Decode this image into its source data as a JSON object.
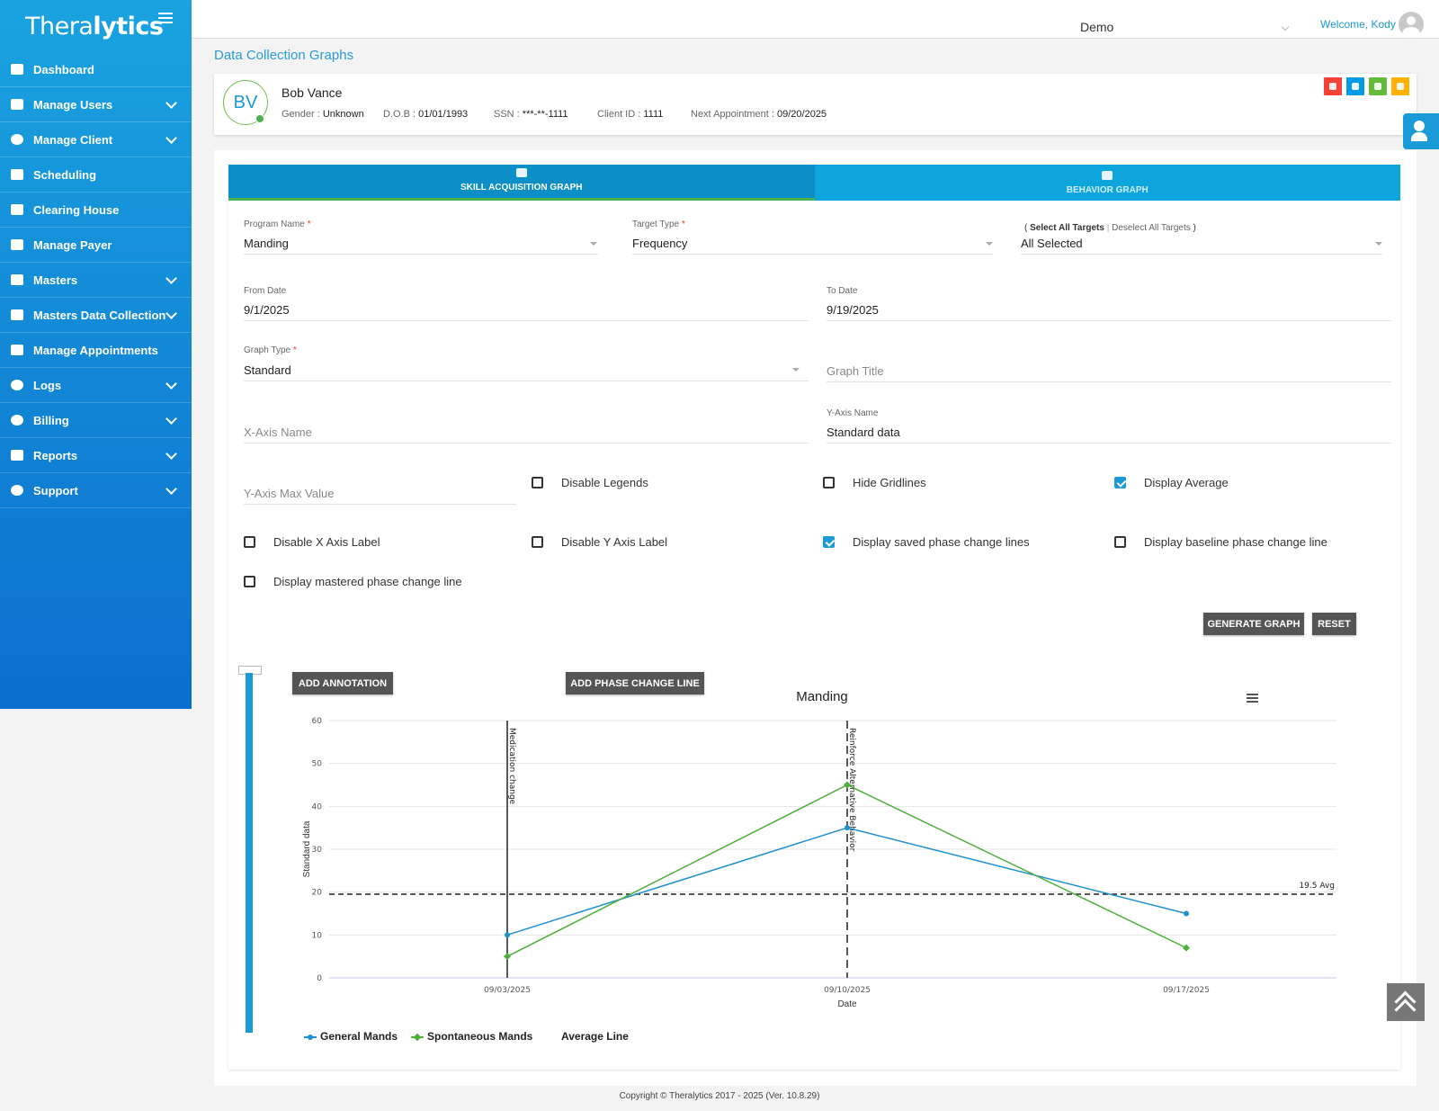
{
  "app": {
    "logo_text_a": "Thera",
    "logo_text_b": "lytics"
  },
  "sidebar": {
    "items": [
      {
        "label": "Dashboard",
        "icon": "dashboard-icon",
        "expandable": false
      },
      {
        "label": "Manage Users",
        "icon": "users-icon",
        "expandable": true
      },
      {
        "label": "Manage Client",
        "icon": "user-icon",
        "expandable": true
      },
      {
        "label": "Scheduling",
        "icon": "calendar-icon",
        "expandable": false
      },
      {
        "label": "Clearing House",
        "icon": "id-card-icon",
        "expandable": false
      },
      {
        "label": "Manage Payer",
        "icon": "credit-card-icon",
        "expandable": false
      },
      {
        "label": "Masters",
        "icon": "database-icon",
        "expandable": true
      },
      {
        "label": "Masters Data Collection",
        "icon": "database-icon",
        "expandable": true
      },
      {
        "label": "Manage Appointments",
        "icon": "credit-card-icon",
        "expandable": false
      },
      {
        "label": "Logs",
        "icon": "history-icon",
        "expandable": true
      },
      {
        "label": "Billing",
        "icon": "dollar-icon",
        "expandable": true
      },
      {
        "label": "Reports",
        "icon": "report-icon",
        "expandable": true
      },
      {
        "label": "Support",
        "icon": "help-icon",
        "expandable": true
      }
    ]
  },
  "header": {
    "org": "Demo",
    "welcome": "Welcome, Kody"
  },
  "page": {
    "title": "Data Collection Graphs"
  },
  "client": {
    "initials": "BV",
    "name": "Bob Vance",
    "gender_label": "Gender : ",
    "gender": "Unknown",
    "dob_label": "D.O.B : ",
    "dob": "01/01/1993",
    "ssn_label": "SSN : ",
    "ssn": "***-**-1111",
    "id_label": "Client ID : ",
    "id": "1111",
    "appt_label": "Next Appointment : ",
    "appt": "09/20/2025"
  },
  "quick_icons": [
    {
      "name": "tag-icon",
      "color": "#f44336"
    },
    {
      "name": "phone-icon",
      "color": "#039be5"
    },
    {
      "name": "contacts-icon",
      "color": "#66bb3a"
    },
    {
      "name": "calendar-icon",
      "color": "#ffb300"
    }
  ],
  "tabs": [
    {
      "label": "SKILL ACQUISITION GRAPH",
      "active": true
    },
    {
      "label": "BEHAVIOR GRAPH",
      "active": false
    }
  ],
  "form": {
    "program_name_label": "Program Name",
    "program_name": "Manding",
    "target_type_label": "Target Type",
    "target_type": "Frequency",
    "select_all": "Select All Targets",
    "deselect_all": "Deselect All Targets",
    "targets_value": "All Selected",
    "from_date_label": "From Date",
    "from_date": "9/1/2025",
    "to_date_label": "To Date",
    "to_date": "9/19/2025",
    "graph_type_label": "Graph Type",
    "graph_type": "Standard",
    "graph_title_placeholder": "Graph Title",
    "x_axis_placeholder": "X-Axis Name",
    "y_axis_label": "Y-Axis Name",
    "y_axis_value": "Standard data",
    "y_max_placeholder": "Y-Axis Max Value",
    "required_mark": "*"
  },
  "checkboxes": [
    {
      "label": "Disable Legends",
      "checked": false
    },
    {
      "label": "Hide Gridlines",
      "checked": false
    },
    {
      "label": "Display Average",
      "checked": true
    },
    {
      "label": "Disable X Axis Label",
      "checked": false
    },
    {
      "label": "Disable Y Axis Label",
      "checked": false
    },
    {
      "label": "Display saved phase change lines",
      "checked": true
    },
    {
      "label": "Display baseline phase change line",
      "checked": false
    },
    {
      "label": "Display mastered phase change line",
      "checked": false
    }
  ],
  "buttons": {
    "generate": "GENERATE GRAPH",
    "reset": "RESET",
    "add_annotation": "ADD ANNOTATION",
    "add_phase": "ADD PHASE CHANGE LINE"
  },
  "chart_data": {
    "type": "line",
    "title": "Manding",
    "xlabel": "Date",
    "ylabel": "Standard data",
    "ylim": [
      0,
      60
    ],
    "yticks": [
      0,
      10,
      20,
      30,
      40,
      50,
      60
    ],
    "categories": [
      "09/03/2025",
      "09/10/2025",
      "09/17/2025"
    ],
    "series": [
      {
        "name": "General Mands",
        "color": "#1f8fd0",
        "values": [
          10,
          35,
          15
        ]
      },
      {
        "name": "Spontaneous Mands",
        "color": "#4cb03a",
        "values": [
          5,
          45,
          7
        ]
      }
    ],
    "average": {
      "name": "Average Line",
      "value": 19.5,
      "label": "19.5 Avg"
    },
    "phase_lines": [
      {
        "at": "09/03/2025",
        "label": "Medication change",
        "style": "solid"
      },
      {
        "at": "09/10/2025",
        "label": "Reinforce Alternative Behavior",
        "style": "dashed"
      }
    ],
    "grid": true,
    "legend": "bottom-left"
  },
  "footer": "Copyright © Theralytics 2017 - 2025 (Ver. 10.8.29)"
}
